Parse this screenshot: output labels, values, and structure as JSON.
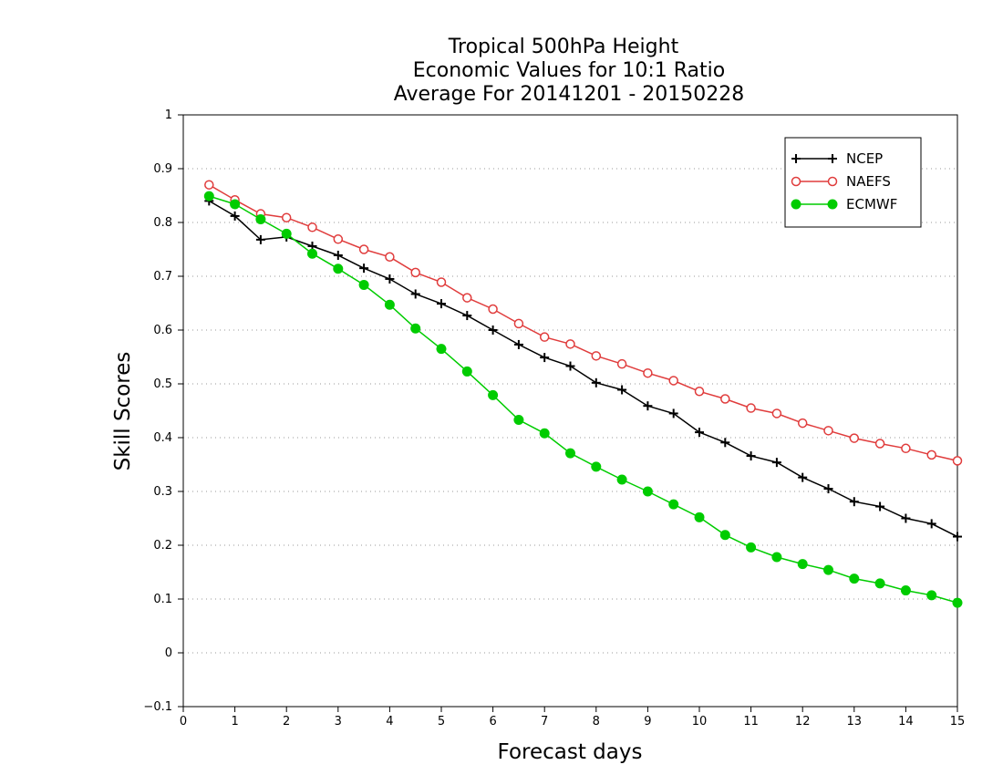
{
  "chart_data": {
    "type": "line",
    "title_lines": [
      "Tropical 500hPa Height",
      "Economic Values for 10:1 Ratio",
      "Average For 20141201 - 20150228"
    ],
    "xlabel": "Forecast days",
    "ylabel": "Skill Scores",
    "xlim": [
      0,
      15
    ],
    "ylim": [
      -0.1,
      1
    ],
    "x_ticks": [
      "0",
      "1",
      "2",
      "3",
      "4",
      "5",
      "6",
      "7",
      "8",
      "9",
      "10",
      "11",
      "12",
      "13",
      "14",
      "15"
    ],
    "y_ticks": [
      "−0.1",
      "0",
      "0.1",
      "0.2",
      "0.3",
      "0.4",
      "0.5",
      "0.6",
      "0.7",
      "0.8",
      "0.9",
      "1"
    ],
    "grid": "dotted horizontal",
    "legend_position": "top-right",
    "x": [
      0.5,
      1,
      1.5,
      2,
      2.5,
      3,
      3.5,
      4,
      4.5,
      5,
      5.5,
      6,
      6.5,
      7,
      7.5,
      8,
      8.5,
      9,
      9.5,
      10,
      10.5,
      11,
      11.5,
      12,
      12.5,
      13,
      13.5,
      14,
      14.5,
      15
    ],
    "series": [
      {
        "name": "NCEP",
        "color": "#000000",
        "marker": "plus",
        "values": [
          0.84,
          0.812,
          0.768,
          0.773,
          0.756,
          0.739,
          0.715,
          0.695,
          0.667,
          0.649,
          0.627,
          0.6,
          0.573,
          0.549,
          0.533,
          0.502,
          0.489,
          0.459,
          0.445,
          0.41,
          0.391,
          0.366,
          0.354,
          0.326,
          0.305,
          0.281,
          0.272,
          0.25,
          0.24,
          0.216
        ]
      },
      {
        "name": "NAEFS",
        "color": "#e03c3c",
        "marker": "open-circle",
        "values": [
          0.87,
          0.842,
          0.816,
          0.809,
          0.791,
          0.769,
          0.75,
          0.736,
          0.707,
          0.689,
          0.66,
          0.639,
          0.612,
          0.587,
          0.574,
          0.552,
          0.537,
          0.52,
          0.506,
          0.486,
          0.472,
          0.455,
          0.445,
          0.427,
          0.413,
          0.399,
          0.389,
          0.38,
          0.368,
          0.357
        ]
      },
      {
        "name": "ECMWF",
        "color": "#00cc00",
        "marker": "filled-circle",
        "values": [
          0.849,
          0.834,
          0.806,
          0.779,
          0.742,
          0.714,
          0.684,
          0.647,
          0.603,
          0.565,
          0.523,
          0.479,
          0.433,
          0.408,
          0.371,
          0.346,
          0.322,
          0.3,
          0.276,
          0.252,
          0.219,
          0.196,
          0.178,
          0.165,
          0.154,
          0.138,
          0.129,
          0.116,
          0.107,
          0.093
        ]
      }
    ]
  }
}
